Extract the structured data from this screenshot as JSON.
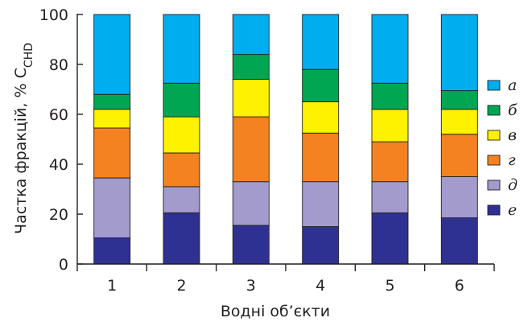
{
  "chart_data": {
    "type": "bar",
    "stacked": true,
    "xlabel": "Водні об’єкти",
    "ylabel": "Частка фракцій, % C",
    "ylabel_sub": "CHD",
    "ylim": [
      0,
      100
    ],
    "yticks": [
      0,
      20,
      40,
      60,
      80,
      100
    ],
    "categories": [
      "1",
      "2",
      "3",
      "4",
      "5",
      "6"
    ],
    "legend_position": "right",
    "series": [
      {
        "name": "е",
        "color": "#2e3192",
        "values": [
          10.5,
          20.5,
          15.5,
          15,
          20.5,
          18.5
        ]
      },
      {
        "name": "д",
        "color": "#a29bcb",
        "values": [
          24,
          10.5,
          17.5,
          18,
          12.5,
          16.5
        ]
      },
      {
        "name": "г",
        "color": "#f58220",
        "values": [
          20,
          13.5,
          26,
          19.5,
          16,
          17
        ]
      },
      {
        "name": "в",
        "color": "#fff200",
        "values": [
          7.5,
          14.5,
          15,
          12.5,
          13,
          10
        ]
      },
      {
        "name": "б",
        "color": "#00a651",
        "values": [
          6,
          13.5,
          10,
          13,
          10.5,
          7.5
        ]
      },
      {
        "name": "а",
        "color": "#00aeef",
        "values": [
          32,
          27.5,
          16,
          22,
          27.5,
          30.5
        ]
      }
    ]
  }
}
